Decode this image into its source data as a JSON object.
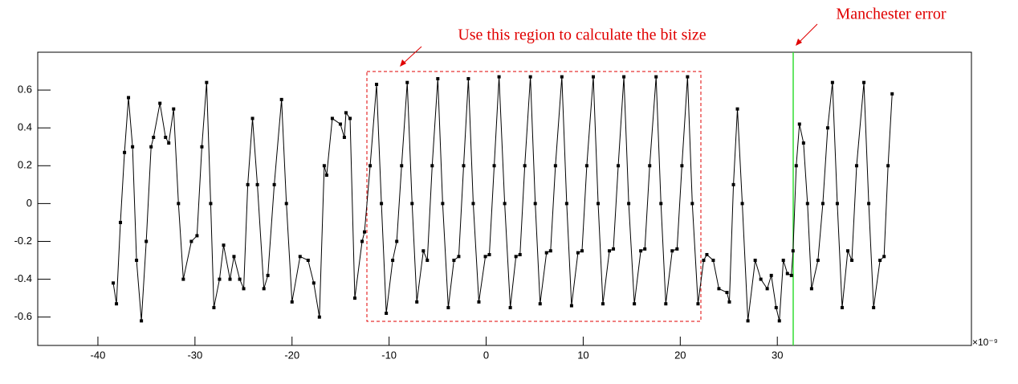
{
  "chart_data": {
    "type": "line",
    "annotations": [
      "Use this region to calculate the bit size",
      "Manchester error"
    ],
    "x_exponent": "×10⁻⁹",
    "color": "#000000",
    "xlim": [
      -46.2,
      50
    ],
    "ylim": [
      -0.75,
      0.8
    ],
    "xticks": [
      -40,
      -30,
      -20,
      -10,
      0,
      10,
      20,
      30
    ],
    "yticks": [
      -0.6,
      -0.4,
      -0.2,
      0,
      0.2,
      0.4,
      0.6
    ],
    "x": [
      -38.42,
      -38.09,
      -37.68,
      -37.26,
      -36.85,
      -36.43,
      -36.02,
      -35.52,
      -35.02,
      -34.52,
      -34.27,
      -33.61,
      -33.03,
      -32.7,
      -32.2,
      -31.7,
      -31.2,
      -30.37,
      -29.79,
      -29.29,
      -28.8,
      -28.38,
      -28.05,
      -27.47,
      -27.05,
      -26.39,
      -25.98,
      -25.39,
      -24.98,
      -24.56,
      -24.07,
      -23.57,
      -22.9,
      -22.49,
      -21.83,
      -21.08,
      -20.58,
      -20.0,
      -19.17,
      -18.34,
      -17.76,
      -17.18,
      -16.68,
      -16.43,
      -15.85,
      -15.02,
      -14.61,
      -14.44,
      -14.02,
      -13.53,
      -12.78,
      -12.53,
      -11.95,
      -11.29,
      -10.79,
      -10.29,
      -9.63,
      -9.21,
      -8.71,
      -8.13,
      -7.63,
      -7.14,
      -6.47,
      -6.06,
      -5.56,
      -4.98,
      -4.48,
      -3.9,
      -3.32,
      -2.82,
      -2.32,
      -1.83,
      -1.33,
      -0.75,
      -0.08,
      0.33,
      0.83,
      1.33,
      1.91,
      2.49,
      3.07,
      3.49,
      3.98,
      4.56,
      5.06,
      5.56,
      6.22,
      6.64,
      7.14,
      7.8,
      8.3,
      8.8,
      9.46,
      9.88,
      10.37,
      11.04,
      11.54,
      12.03,
      12.7,
      13.11,
      13.61,
      14.19,
      14.69,
      15.27,
      15.93,
      16.35,
      16.85,
      17.51,
      18.01,
      18.51,
      19.17,
      19.67,
      20.17,
      20.75,
      21.24,
      21.83,
      22.41,
      22.74,
      23.4,
      23.98,
      24.81,
      25.06,
      25.48,
      25.89,
      26.39,
      26.97,
      27.72,
      28.3,
      28.96,
      29.38,
      29.88,
      30.21,
      30.62,
      31.04,
      31.45,
      31.62,
      31.95,
      32.28,
      32.7,
      33.11,
      33.53,
      34.19,
      34.69,
      35.19,
      35.68,
      36.18,
      36.68,
      37.26,
      37.68,
      38.17,
      38.92,
      39.42,
      39.92,
      40.58,
      41.0,
      41.41,
      41.83
    ],
    "series": [
      {
        "values": [
          -0.42,
          -0.53,
          -0.1,
          0.27,
          0.56,
          0.3,
          -0.3,
          -0.62,
          -0.2,
          0.3,
          0.35,
          0.53,
          0.35,
          0.32,
          0.5,
          0.0,
          -0.4,
          -0.2,
          -0.17,
          0.3,
          0.64,
          0.0,
          -0.55,
          -0.4,
          -0.22,
          -0.4,
          -0.28,
          -0.4,
          -0.45,
          0.1,
          0.45,
          0.1,
          -0.45,
          -0.38,
          0.1,
          0.55,
          0.0,
          -0.52,
          -0.28,
          -0.3,
          -0.42,
          -0.6,
          0.2,
          0.15,
          0.45,
          0.42,
          0.35,
          0.48,
          0.45,
          -0.5,
          -0.2,
          -0.15,
          0.2,
          0.63,
          0.0,
          -0.58,
          -0.3,
          -0.2,
          0.2,
          0.64,
          0.0,
          -0.52,
          -0.25,
          -0.3,
          0.2,
          0.66,
          0.0,
          -0.55,
          -0.3,
          -0.28,
          0.2,
          0.66,
          0.0,
          -0.52,
          -0.28,
          -0.27,
          0.2,
          0.67,
          0.0,
          -0.55,
          -0.28,
          -0.27,
          0.2,
          0.67,
          0.0,
          -0.53,
          -0.26,
          -0.25,
          0.2,
          0.67,
          0.0,
          -0.54,
          -0.26,
          -0.25,
          0.2,
          0.67,
          0.0,
          -0.53,
          -0.25,
          -0.24,
          0.2,
          0.67,
          0.0,
          -0.53,
          -0.25,
          -0.24,
          0.2,
          0.67,
          0.0,
          -0.53,
          -0.25,
          -0.24,
          0.2,
          0.67,
          0.0,
          -0.53,
          -0.3,
          -0.27,
          -0.3,
          -0.45,
          -0.47,
          -0.52,
          0.1,
          0.5,
          0.0,
          -0.62,
          -0.3,
          -0.4,
          -0.45,
          -0.38,
          -0.55,
          -0.62,
          -0.3,
          -0.37,
          -0.38,
          -0.25,
          0.2,
          0.42,
          0.32,
          0.0,
          -0.45,
          -0.3,
          0.0,
          0.4,
          0.64,
          0.0,
          -0.55,
          -0.25,
          -0.3,
          0.2,
          0.64,
          0.0,
          -0.55,
          -0.3,
          -0.28,
          0.2,
          0.58
        ]
      }
    ]
  }
}
